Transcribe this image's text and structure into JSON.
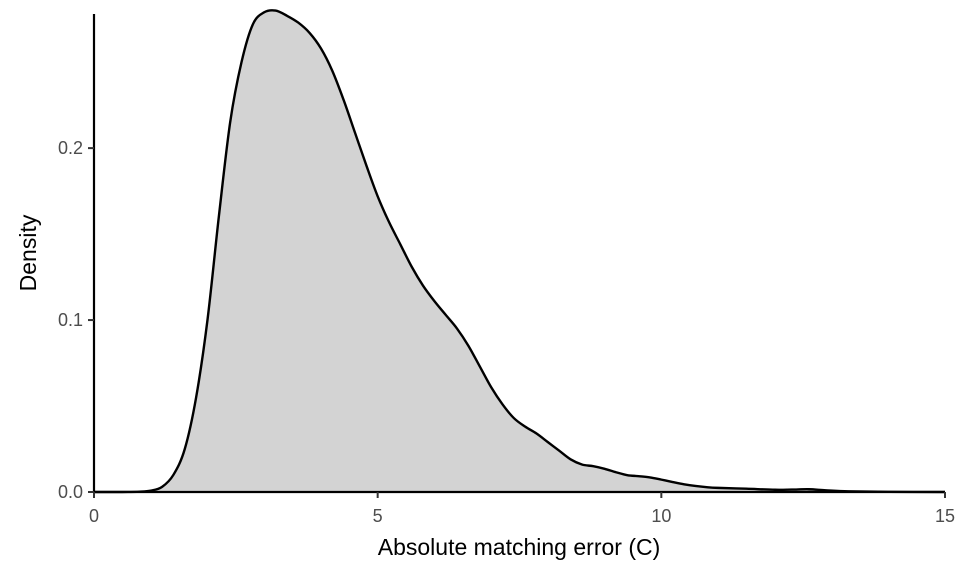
{
  "chart_data": {
    "type": "area",
    "title": "",
    "xlabel": "Absolute matching error (C)",
    "ylabel": "Density",
    "xlim": [
      0,
      15
    ],
    "ylim": [
      0,
      0.278
    ],
    "x_ticks": [
      0,
      5,
      10,
      15
    ],
    "x_tick_labels": [
      "0",
      "5",
      "10",
      "15"
    ],
    "y_ticks": [
      0.0,
      0.1,
      0.2
    ],
    "y_tick_labels": [
      "0.0",
      "0.1",
      "0.2"
    ],
    "grid": false,
    "legend": "none",
    "fill_color": "#d3d3d3",
    "line_color": "#000000",
    "x": [
      0,
      0.5,
      0.8,
      1.0,
      1.2,
      1.4,
      1.6,
      1.8,
      2.0,
      2.2,
      2.4,
      2.6,
      2.8,
      3.0,
      3.2,
      3.4,
      3.6,
      3.8,
      4.0,
      4.2,
      4.4,
      4.6,
      4.8,
      5.0,
      5.2,
      5.4,
      5.6,
      5.8,
      6.0,
      6.2,
      6.4,
      6.6,
      6.8,
      7.0,
      7.2,
      7.4,
      7.6,
      7.8,
      8.0,
      8.2,
      8.4,
      8.6,
      8.8,
      9.0,
      9.2,
      9.4,
      9.6,
      9.8,
      10.0,
      10.2,
      10.4,
      10.6,
      10.8,
      11.0,
      11.5,
      12.0,
      12.3,
      12.6,
      12.9,
      13.3,
      14.0,
      15.0
    ],
    "y": [
      0.0,
      0.0,
      0.0002,
      0.0008,
      0.003,
      0.01,
      0.025,
      0.055,
      0.1,
      0.16,
      0.215,
      0.25,
      0.272,
      0.279,
      0.28,
      0.277,
      0.273,
      0.267,
      0.258,
      0.245,
      0.228,
      0.209,
      0.19,
      0.172,
      0.157,
      0.144,
      0.131,
      0.12,
      0.111,
      0.103,
      0.095,
      0.085,
      0.073,
      0.061,
      0.051,
      0.043,
      0.038,
      0.034,
      0.029,
      0.024,
      0.019,
      0.016,
      0.015,
      0.0135,
      0.0115,
      0.0098,
      0.0092,
      0.0085,
      0.0072,
      0.0058,
      0.0045,
      0.0035,
      0.0028,
      0.0024,
      0.0019,
      0.0013,
      0.0014,
      0.0016,
      0.001,
      0.0004,
      0.0001,
      0.0
    ]
  }
}
